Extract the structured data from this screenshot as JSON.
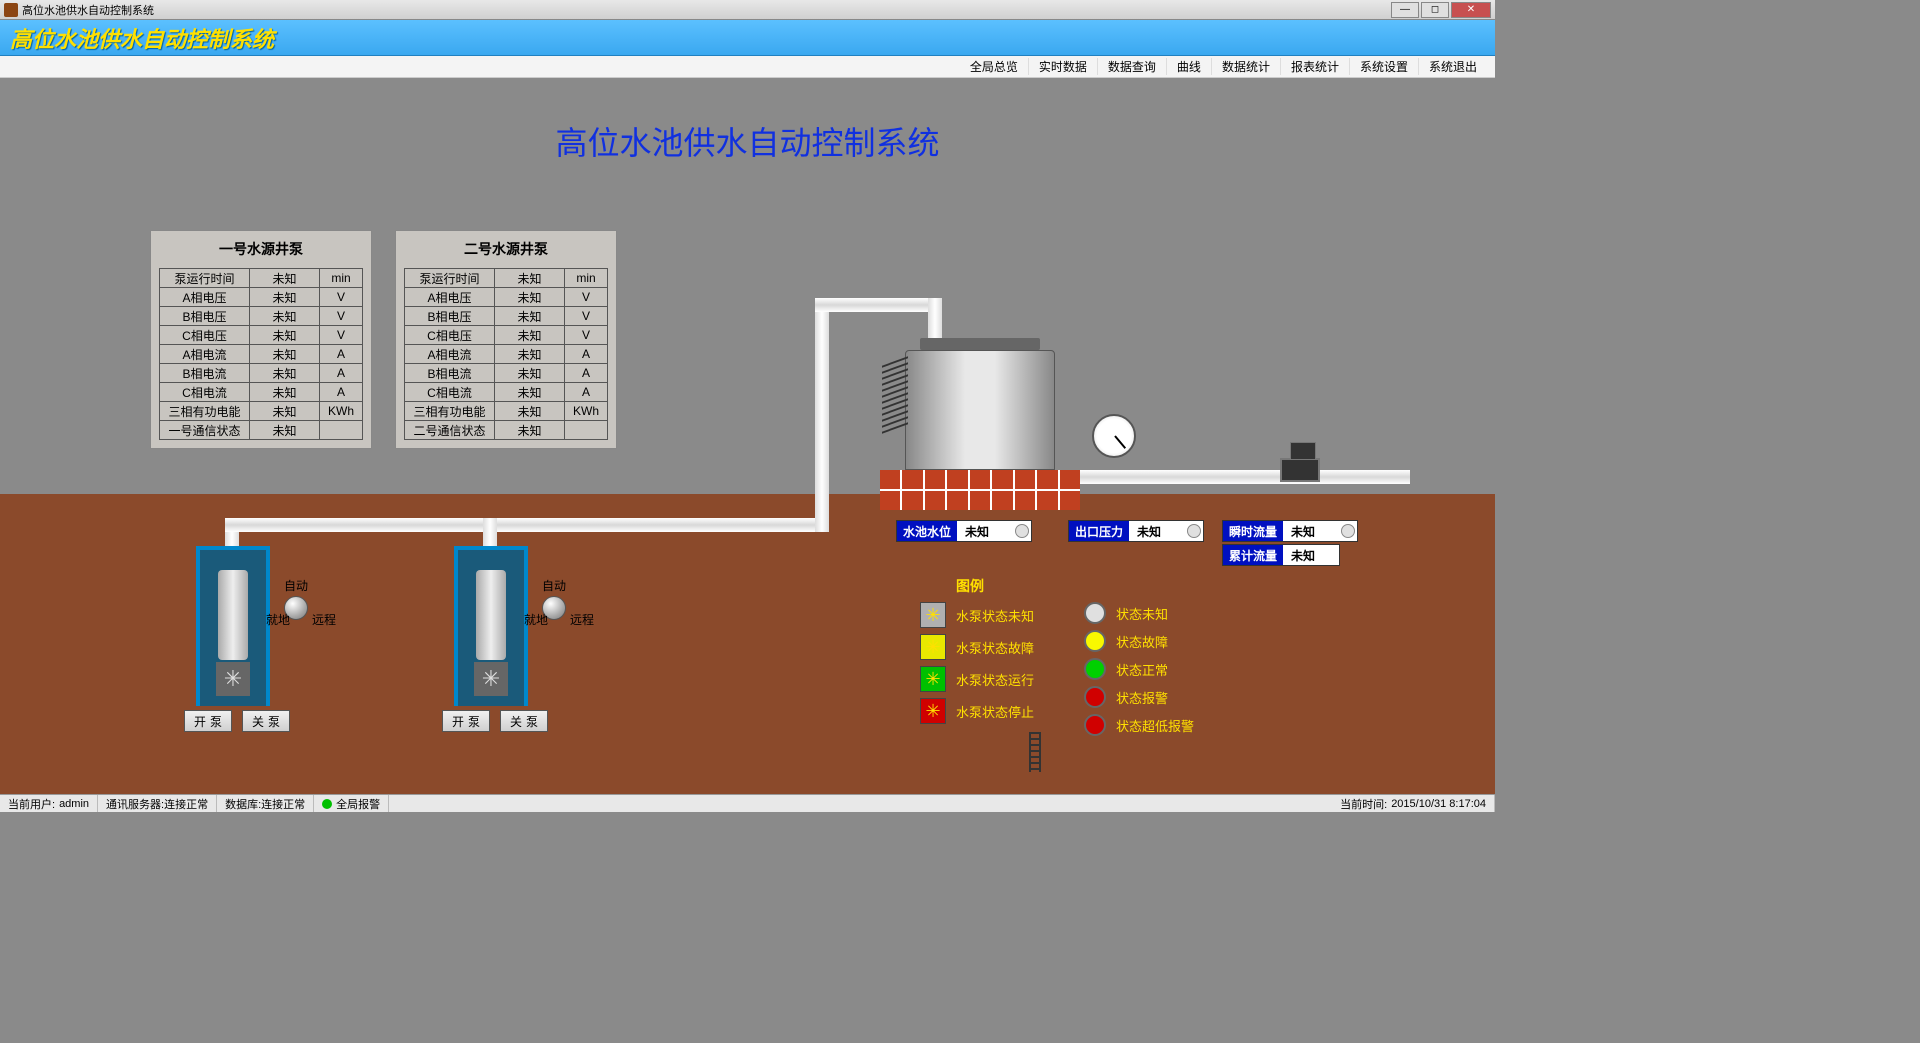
{
  "window_title": "高位水池供水自动控制系统",
  "header_title": "高位水池供水自动控制系统",
  "menu": [
    "全局总览",
    "实时数据",
    "数据查询",
    "曲线",
    "数据统计",
    "报表统计",
    "系统设置",
    "系统退出"
  ],
  "main_title": "高位水池供水自动控制系统",
  "pump_tables": [
    {
      "title": "一号水源井泵",
      "rows": [
        {
          "label": "泵运行时间",
          "value": "未知",
          "unit": "min"
        },
        {
          "label": "A相电压",
          "value": "未知",
          "unit": "V"
        },
        {
          "label": "B相电压",
          "value": "未知",
          "unit": "V"
        },
        {
          "label": "C相电压",
          "value": "未知",
          "unit": "V"
        },
        {
          "label": "A相电流",
          "value": "未知",
          "unit": "A"
        },
        {
          "label": "B相电流",
          "value": "未知",
          "unit": "A"
        },
        {
          "label": "C相电流",
          "value": "未知",
          "unit": "A"
        },
        {
          "label": "三相有功电能",
          "value": "未知",
          "unit": "KWh"
        },
        {
          "label": "一号通信状态",
          "value": "未知",
          "unit": ""
        }
      ]
    },
    {
      "title": "二号水源井泵",
      "rows": [
        {
          "label": "泵运行时间",
          "value": "未知",
          "unit": "min"
        },
        {
          "label": "A相电压",
          "value": "未知",
          "unit": "V"
        },
        {
          "label": "B相电压",
          "value": "未知",
          "unit": "V"
        },
        {
          "label": "C相电压",
          "value": "未知",
          "unit": "V"
        },
        {
          "label": "A相电流",
          "value": "未知",
          "unit": "A"
        },
        {
          "label": "B相电流",
          "value": "未知",
          "unit": "A"
        },
        {
          "label": "C相电流",
          "value": "未知",
          "unit": "A"
        },
        {
          "label": "三相有功电能",
          "value": "未知",
          "unit": "KWh"
        },
        {
          "label": "二号通信状态",
          "value": "未知",
          "unit": ""
        }
      ]
    }
  ],
  "knob": {
    "top": "自动",
    "left": "就地",
    "right": "远程"
  },
  "buttons": {
    "on": "开泵",
    "off": "关泵"
  },
  "readings": {
    "level": {
      "label": "水池水位",
      "value": "未知"
    },
    "press": {
      "label": "出口压力",
      "value": "未知"
    },
    "flow_i": {
      "label": "瞬时流量",
      "value": "未知"
    },
    "flow_a": {
      "label": "累计流量",
      "value": "未知"
    }
  },
  "legend": {
    "title": "图例",
    "pump_states": [
      {
        "color": "#b0b0b0",
        "label": "水泵状态未知"
      },
      {
        "color": "#e8e800",
        "label": "水泵状态故障"
      },
      {
        "color": "#00c000",
        "label": "水泵状态运行"
      },
      {
        "color": "#d00000",
        "label": "水泵状态停止"
      }
    ],
    "led_states": [
      {
        "color": "#e0e0e0",
        "label": "状态未知"
      },
      {
        "color": "#f8f800",
        "label": "状态故障"
      },
      {
        "color": "#00d000",
        "label": "状态正常"
      },
      {
        "color": "#d00000",
        "label": "状态报警"
      },
      {
        "color": "#d00000",
        "label": "状态超低报警"
      }
    ]
  },
  "statusbar": {
    "user_label": "当前用户:",
    "user": "admin",
    "comm": "通讯服务器:连接正常",
    "db": "数据库:连接正常",
    "alarm": "全局报警",
    "time_label": "当前时间:",
    "time": "2015/10/31 8:17:04"
  },
  "colors": {
    "ground": "#8b4a2b",
    "bg": "#8a8a8a",
    "accent_blue": "#0010c0",
    "accent_yellow": "#ffe000"
  }
}
